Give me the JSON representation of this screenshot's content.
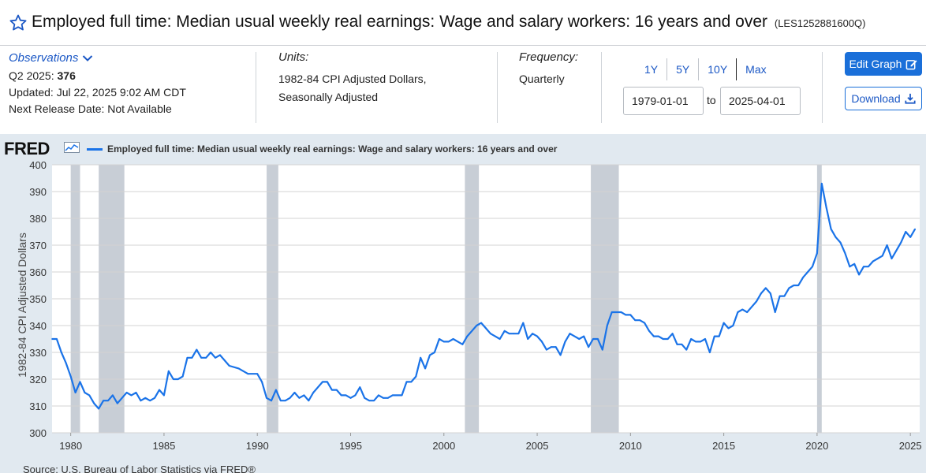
{
  "header": {
    "title": "Employed full time: Median usual weekly real earnings: Wage and salary workers: 16 years and over",
    "series_id": "(LES1252881600Q)",
    "star_icon": "star-outline-icon"
  },
  "observations": {
    "link_label": "Observations",
    "latest_label": "Q2 2025:",
    "latest_value": "376",
    "updated": "Updated: Jul 22, 2025 9:02 AM CDT",
    "next_release": "Next Release Date: Not Available"
  },
  "units": {
    "label": "Units:",
    "line1": "1982-84 CPI Adjusted Dollars,",
    "line2": "Seasonally Adjusted"
  },
  "frequency": {
    "label": "Frequency:",
    "value": "Quarterly"
  },
  "range": {
    "buttons": [
      "1Y",
      "5Y",
      "10Y",
      "Max"
    ],
    "start": "1979-01-01",
    "to": "to",
    "end": "2025-04-01"
  },
  "actions": {
    "edit_label": "Edit Graph",
    "download_label": "Download"
  },
  "chart_header": {
    "logo": "FRED",
    "legend": "Employed full time: Median usual weekly real earnings: Wage and salary workers: 16 years and over"
  },
  "source": "Source: U.S. Bureau of Labor Statistics via FRED®",
  "colors": {
    "line": "#1a73e8",
    "accent": "#1a6fd9",
    "recession": "#c8ced6",
    "plot_bg": "#ffffff",
    "chart_bg": "#e1e9f0"
  },
  "chart_data": {
    "type": "line",
    "title": "",
    "xlabel": "",
    "ylabel": "1982-84 CPI Adjusted Dollars",
    "ylim": [
      300,
      400
    ],
    "xlim": [
      1979.0,
      2025.5
    ],
    "yticks": [
      300,
      310,
      320,
      330,
      340,
      350,
      360,
      370,
      380,
      390,
      400
    ],
    "xticks": [
      1980,
      1985,
      1990,
      1995,
      2000,
      2005,
      2010,
      2015,
      2020,
      2025
    ],
    "grid": true,
    "legend_position": "top-left",
    "recessions": [
      [
        1980.0,
        1980.5
      ],
      [
        1981.5,
        1982.875
      ],
      [
        1990.5,
        1991.125
      ],
      [
        2001.125,
        2001.875
      ],
      [
        2007.875,
        2009.375
      ],
      [
        2020.0,
        2020.25
      ]
    ],
    "series": [
      {
        "name": "Employed full time: Median usual weekly real earnings: Wage and salary workers: 16 years and over",
        "x": [
          1979.0,
          1979.25,
          1979.5,
          1979.75,
          1980.0,
          1980.25,
          1980.5,
          1980.75,
          1981.0,
          1981.25,
          1981.5,
          1981.75,
          1982.0,
          1982.25,
          1982.5,
          1982.75,
          1983.0,
          1983.25,
          1983.5,
          1983.75,
          1984.0,
          1984.25,
          1984.5,
          1984.75,
          1985.0,
          1985.25,
          1985.5,
          1985.75,
          1986.0,
          1986.25,
          1986.5,
          1986.75,
          1987.0,
          1987.25,
          1987.5,
          1987.75,
          1988.0,
          1988.5,
          1989.0,
          1989.5,
          1990.0,
          1990.25,
          1990.5,
          1990.75,
          1991.0,
          1991.25,
          1991.5,
          1991.75,
          1992.0,
          1992.25,
          1992.5,
          1992.75,
          1993.0,
          1993.25,
          1993.5,
          1993.75,
          1994.0,
          1994.25,
          1994.5,
          1994.75,
          1995.0,
          1995.25,
          1995.5,
          1995.75,
          1996.0,
          1996.25,
          1996.5,
          1996.75,
          1997.0,
          1997.25,
          1997.5,
          1997.75,
          1998.0,
          1998.25,
          1998.5,
          1998.75,
          1999.0,
          1999.25,
          1999.5,
          1999.75,
          2000.0,
          2000.25,
          2000.5,
          2000.75,
          2001.0,
          2001.25,
          2001.5,
          2001.75,
          2002.0,
          2002.25,
          2002.5,
          2002.75,
          2003.0,
          2003.25,
          2003.5,
          2003.75,
          2004.0,
          2004.25,
          2004.5,
          2004.75,
          2005.0,
          2005.25,
          2005.5,
          2005.75,
          2006.0,
          2006.25,
          2006.5,
          2006.75,
          2007.0,
          2007.25,
          2007.5,
          2007.75,
          2008.0,
          2008.25,
          2008.5,
          2008.75,
          2009.0,
          2009.25,
          2009.5,
          2009.75,
          2010.0,
          2010.25,
          2010.5,
          2010.75,
          2011.0,
          2011.25,
          2011.5,
          2011.75,
          2012.0,
          2012.25,
          2012.5,
          2012.75,
          2013.0,
          2013.25,
          2013.5,
          2013.75,
          2014.0,
          2014.25,
          2014.5,
          2014.75,
          2015.0,
          2015.25,
          2015.5,
          2015.75,
          2016.0,
          2016.25,
          2016.5,
          2016.75,
          2017.0,
          2017.25,
          2017.5,
          2017.75,
          2018.0,
          2018.25,
          2018.5,
          2018.75,
          2019.0,
          2019.25,
          2019.5,
          2019.75,
          2020.0,
          2020.25,
          2020.5,
          2020.75,
          2021.0,
          2021.25,
          2021.5,
          2021.75,
          2022.0,
          2022.25,
          2022.5,
          2022.75,
          2023.0,
          2023.25,
          2023.5,
          2023.75,
          2024.0,
          2024.25,
          2024.5,
          2024.75,
          2025.0,
          2025.25
        ],
        "values": [
          335,
          335,
          330,
          326,
          321,
          315,
          319,
          315,
          314,
          311,
          309,
          312,
          312,
          314,
          311,
          313,
          315,
          314,
          315,
          312,
          313,
          312,
          313,
          316,
          314,
          323,
          320,
          320,
          321,
          328,
          328,
          331,
          328,
          328,
          330,
          328,
          329,
          325,
          324,
          322,
          322,
          319,
          313,
          312,
          316,
          312,
          312,
          313,
          315,
          313,
          314,
          312,
          315,
          317,
          319,
          319,
          316,
          316,
          314,
          314,
          313,
          314,
          317,
          313,
          312,
          312,
          314,
          313,
          313,
          314,
          314,
          314,
          319,
          319,
          321,
          328,
          324,
          329,
          330,
          335,
          334,
          334,
          335,
          334,
          333,
          336,
          338,
          340,
          341,
          339,
          337,
          336,
          335,
          338,
          337,
          337,
          337,
          341,
          335,
          337,
          336,
          334,
          331,
          332,
          332,
          329,
          334,
          337,
          336,
          335,
          336,
          332,
          335,
          335,
          331,
          340,
          345,
          345,
          345,
          344,
          344,
          342,
          342,
          341,
          338,
          336,
          336,
          335,
          335,
          337,
          333,
          333,
          331,
          335,
          334,
          334,
          335,
          330,
          336,
          336,
          341,
          339,
          340,
          345,
          346,
          345,
          347,
          349,
          352,
          354,
          352,
          345,
          351,
          351,
          354,
          355,
          355,
          358,
          360,
          362,
          367,
          393,
          384,
          376,
          373,
          371,
          367,
          362,
          363,
          359,
          362,
          362,
          364,
          365,
          366,
          370,
          365,
          368,
          371,
          375,
          373,
          376
        ]
      }
    ]
  }
}
